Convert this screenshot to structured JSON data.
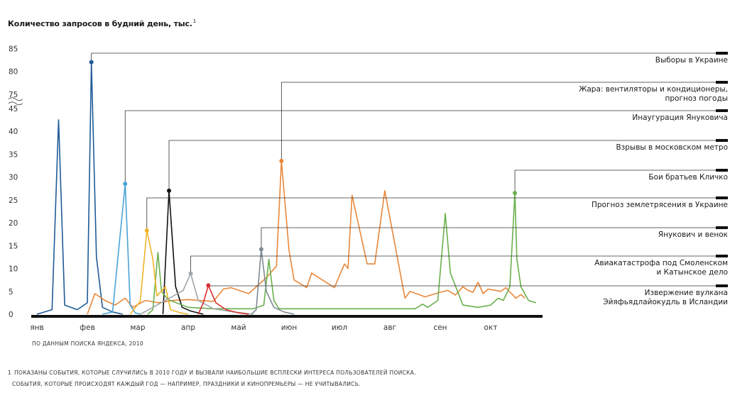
{
  "title": "Количество запросов в будний день, тыс.",
  "title_footnote_mark": "1",
  "source": "ПО ДАННЫМ ПОИСКА ЯНДЕКСА, 2010",
  "footnote": {
    "number": "1",
    "line1": "ПОКАЗАНЫ СОБЫТИЯ, КОТОРЫЕ СЛУЧИЛИСЬ В 2010 ГОДУ И ВЫЗВАЛИ НАИБОЛЬШИЕ ВСПЛЕСКИ ИНТЕРЕСА ПОЛЬЗОВАТЕЛЕЙ ПОИСКА.",
    "line2": "СОБЫТИЯ, КОТОРЫЕ ПРОИСХОДЯТ КАЖДЫЙ ГОД — НАПРИМЕР, ПРАЗДНИКИ И КИНОПРЕМЬЕРЫ — НЕ УЧИТЫВАЛИСЬ."
  },
  "chart_data": {
    "type": "line",
    "ylabel": "Количество запросов в будний день, тыс.",
    "ylim": [
      0,
      85
    ],
    "y_axis_break": [
      45,
      75
    ],
    "y_ticks": [
      "0",
      "5",
      "10",
      "15",
      "20",
      "25",
      "30",
      "35",
      "40",
      "45",
      "75",
      "80",
      "85"
    ],
    "y_tick_values": [
      0,
      5,
      10,
      15,
      20,
      25,
      30,
      35,
      40,
      45,
      75,
      80,
      85
    ],
    "months": [
      "янв",
      "фев",
      "мар",
      "апр",
      "май",
      "июн",
      "июл",
      "авг",
      "сен",
      "окт"
    ],
    "grid": false,
    "series": [
      {
        "name": "Выборы в Украине",
        "color": "#1f5b96",
        "points": [
          [
            0.0,
            0
          ],
          [
            0.3,
            1
          ],
          [
            0.43,
            42.5
          ],
          [
            0.55,
            2
          ],
          [
            0.8,
            1
          ],
          [
            1.0,
            2.5
          ],
          [
            1.08,
            82
          ],
          [
            1.18,
            12.5
          ],
          [
            1.3,
            1.5
          ],
          [
            1.5,
            0.5
          ],
          [
            1.7,
            0
          ]
        ],
        "peak": [
          1.08,
          82
        ]
      },
      {
        "name": "Жара: вентиляторы и кондиционеры, прогноз погоды",
        "color": "#e8873a",
        "points": [
          [
            1.0,
            0
          ],
          [
            1.15,
            4.5
          ],
          [
            1.35,
            3
          ],
          [
            1.55,
            2
          ],
          [
            1.75,
            3.5
          ],
          [
            1.9,
            1.5
          ],
          [
            2.15,
            3
          ],
          [
            2.4,
            2.5
          ],
          [
            2.7,
            3
          ],
          [
            3.0,
            3.2
          ],
          [
            3.5,
            2.8
          ],
          [
            3.7,
            5.5
          ],
          [
            3.85,
            5.8
          ],
          [
            4.2,
            4.5
          ],
          [
            4.55,
            8
          ],
          [
            4.75,
            10.5
          ],
          [
            4.85,
            33.5
          ],
          [
            5.0,
            14
          ],
          [
            5.1,
            7.5
          ],
          [
            5.35,
            5.8
          ],
          [
            5.45,
            9
          ],
          [
            5.9,
            5.8
          ],
          [
            6.1,
            11
          ],
          [
            6.17,
            10
          ],
          [
            6.25,
            26
          ],
          [
            6.55,
            11
          ],
          [
            6.7,
            11
          ],
          [
            6.9,
            27
          ],
          [
            7.3,
            3.5
          ],
          [
            7.4,
            5
          ],
          [
            7.7,
            3.8
          ],
          [
            8.0,
            4.8
          ],
          [
            8.15,
            5.2
          ],
          [
            8.3,
            4.2
          ],
          [
            8.45,
            6
          ],
          [
            8.55,
            5.2
          ],
          [
            8.65,
            4.8
          ],
          [
            8.75,
            7
          ],
          [
            8.85,
            4.5
          ],
          [
            8.95,
            5.5
          ],
          [
            9.2,
            5
          ],
          [
            9.3,
            5.8
          ],
          [
            9.5,
            3.5
          ],
          [
            9.6,
            4.3
          ],
          [
            9.68,
            3.5
          ]
        ],
        "peak": [
          4.85,
          33.5
        ]
      },
      {
        "name": "Инаугурация Януковича",
        "color": "#4aa3d6",
        "points": [
          [
            1.3,
            0
          ],
          [
            1.5,
            0.5
          ],
          [
            1.75,
            28.5
          ],
          [
            1.85,
            2
          ],
          [
            1.95,
            0.3
          ],
          [
            2.05,
            0
          ]
        ],
        "peak": [
          1.75,
          28.5
        ]
      },
      {
        "name": "Взрывы в московском метро",
        "color": "#111111",
        "points": [
          [
            2.5,
            0
          ],
          [
            2.62,
            27
          ],
          [
            2.75,
            6
          ],
          [
            2.88,
            1.5
          ],
          [
            3.05,
            0.7
          ],
          [
            3.3,
            0
          ]
        ],
        "peak": [
          2.62,
          27
        ]
      },
      {
        "name": "Бои братьев Кличко",
        "color": "#6ab04c",
        "points": [
          [
            2.2,
            0
          ],
          [
            2.3,
            1
          ],
          [
            2.4,
            13.5
          ],
          [
            2.47,
            5
          ],
          [
            2.6,
            3.2
          ],
          [
            3.0,
            1.5
          ],
          [
            3.5,
            1.2
          ],
          [
            4.3,
            1.2
          ],
          [
            4.5,
            2
          ],
          [
            4.6,
            12
          ],
          [
            4.7,
            3
          ],
          [
            4.8,
            1.2
          ],
          [
            5.5,
            1.2
          ],
          [
            7.5,
            1.2
          ],
          [
            7.65,
            2.2
          ],
          [
            7.75,
            1.5
          ],
          [
            7.95,
            3
          ],
          [
            8.1,
            22
          ],
          [
            8.2,
            9
          ],
          [
            8.45,
            2
          ],
          [
            8.75,
            1.5
          ],
          [
            9.0,
            2
          ],
          [
            9.15,
            3.5
          ],
          [
            9.25,
            3
          ],
          [
            9.38,
            6
          ],
          [
            9.48,
            26.5
          ],
          [
            9.52,
            12
          ],
          [
            9.6,
            6
          ],
          [
            9.75,
            3
          ],
          [
            9.9,
            2.5
          ]
        ],
        "peak": [
          9.48,
          26.5
        ]
      },
      {
        "name": "Прогноз землетрясения в Украине",
        "color": "#f0b429",
        "points": [
          [
            1.85,
            0
          ],
          [
            2.05,
            2.8
          ],
          [
            2.18,
            18.3
          ],
          [
            2.3,
            12
          ],
          [
            2.38,
            4
          ],
          [
            2.55,
            6
          ],
          [
            2.65,
            1
          ],
          [
            2.85,
            0.3
          ],
          [
            3.0,
            0
          ]
        ],
        "peak": [
          2.18,
          18.3
        ]
      },
      {
        "name": "Янукович и венок",
        "color": "#7d8a94",
        "points": [
          [
            4.25,
            0
          ],
          [
            4.35,
            1
          ],
          [
            4.45,
            14.2
          ],
          [
            4.55,
            5
          ],
          [
            4.7,
            1.5
          ],
          [
            4.9,
            0.5
          ],
          [
            5.1,
            0
          ]
        ],
        "peak": [
          4.45,
          14.2
        ]
      },
      {
        "name": "Авиакатастрофа под Смоленском и Катынское дело",
        "color": "#a0a6aa",
        "points": [
          [
            2.05,
            0
          ],
          [
            2.3,
            1.5
          ],
          [
            2.55,
            3
          ],
          [
            2.9,
            5.2
          ],
          [
            3.05,
            8.9
          ],
          [
            3.2,
            3
          ],
          [
            3.5,
            1.2
          ],
          [
            3.9,
            0.5
          ],
          [
            4.3,
            0
          ]
        ],
        "peak": [
          3.05,
          8.9
        ]
      },
      {
        "name": "Извержение вулкана Эйяфьядлайокудль в Исландии",
        "color": "#d62e2e",
        "points": [
          [
            3.2,
            0
          ],
          [
            3.3,
            2.5
          ],
          [
            3.4,
            6.3
          ],
          [
            3.55,
            2.5
          ],
          [
            3.75,
            1
          ],
          [
            4.0,
            0.3
          ],
          [
            4.2,
            0
          ]
        ],
        "peak": [
          3.4,
          6.3
        ]
      }
    ]
  }
}
